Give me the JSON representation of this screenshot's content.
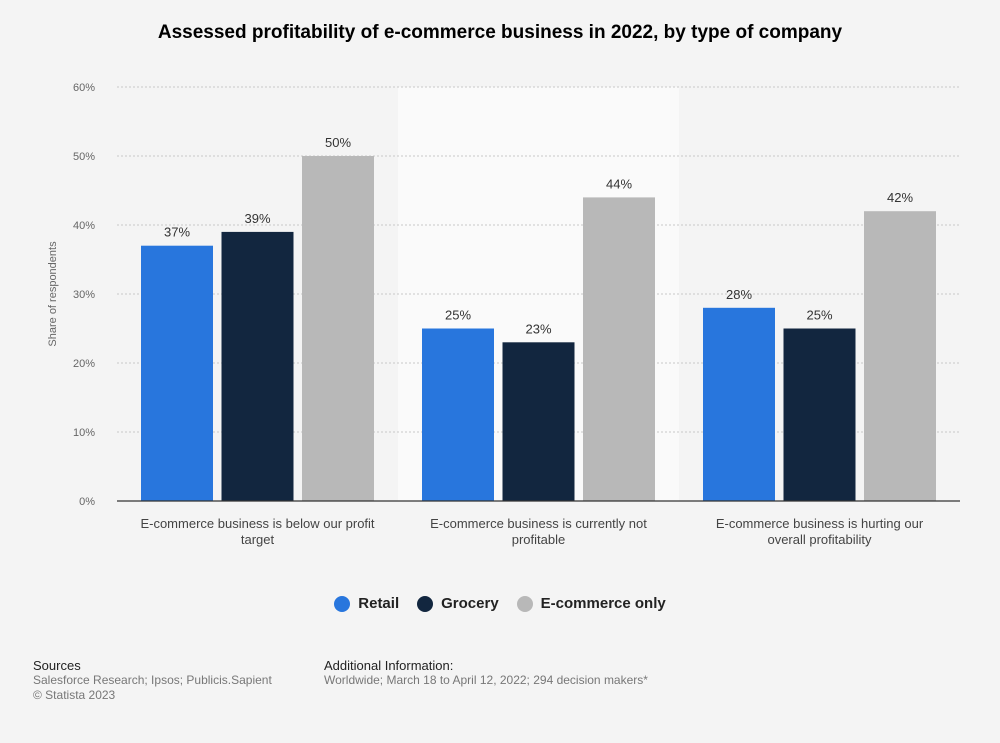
{
  "chart_data": {
    "type": "bar",
    "title": "Assessed profitability of e-commerce business in 2022, by type of company",
    "ylabel": "Share of respondents",
    "ylim": [
      0,
      60
    ],
    "yticks": [
      "0%",
      "10%",
      "20%",
      "30%",
      "40%",
      "50%",
      "60%"
    ],
    "categories": [
      [
        "E-commerce business is below our profit",
        "target"
      ],
      [
        "E-commerce business is currently not",
        "profitable"
      ],
      [
        "E-commerce business is hurting our",
        "overall profitability"
      ]
    ],
    "series": [
      {
        "name": "Retail",
        "color": "#2876dd",
        "values": [
          37,
          25,
          28
        ]
      },
      {
        "name": "Grocery",
        "color": "#12263f",
        "values": [
          39,
          23,
          25
        ]
      },
      {
        "name": "E-commerce only",
        "color": "#b8b8b8",
        "values": [
          50,
          44,
          42
        ]
      }
    ],
    "legend": "bottom-center",
    "grid": true
  },
  "footer": {
    "sources_title": "Sources",
    "sources": "Salesforce Research; Ipsos; Publicis.Sapient",
    "copyright": "© Statista 2023",
    "info_title": "Additional Information:",
    "info": "Worldwide; March 18 to April 12, 2022; 294 decision makers*"
  }
}
